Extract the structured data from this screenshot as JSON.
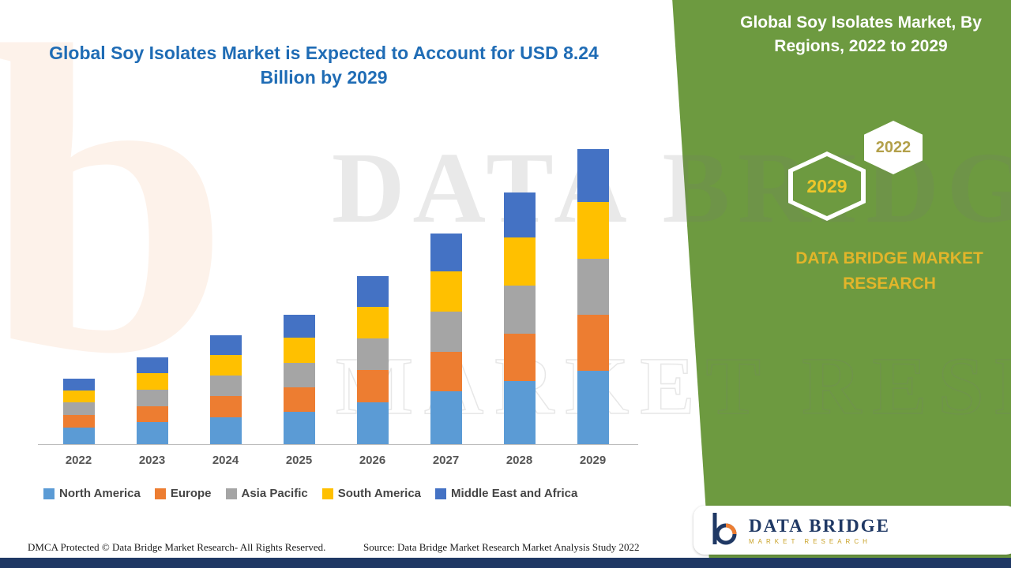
{
  "header": {
    "left_title": "Global Soy Isolates Market is Expected to Account for USD 8.24 Billion by 2029",
    "right_title": "Global Soy Isolates Market, By Regions, 2022 to 2029"
  },
  "badges": {
    "hex_2029": "2029",
    "hex_2022": "2022"
  },
  "brand": {
    "panel_text": "DATA BRIDGE MARKET RESEARCH",
    "logo_name": "DATA BRIDGE",
    "logo_sub": "MARKET RESEARCH"
  },
  "watermark": {
    "line1": "DATA BRIDGE",
    "line2": "MARKET RESEARCH",
    "logo_glyph": "b"
  },
  "footer": {
    "dmca": "DMCA Protected © Data Bridge Market Research- All Rights Reserved.",
    "source": "Source: Data Bridge Market Research Market Analysis Study 2022"
  },
  "colors": {
    "panel_green": "#6d9a40",
    "title_blue": "#1f6cb5",
    "gold": "#e2b52a",
    "navy": "#1f3864"
  },
  "chart_data": {
    "type": "bar",
    "stacked": true,
    "title": "Global Soy Isolates Market, By Regions, 2022 to 2029",
    "unit": "USD Billion",
    "categories": [
      "2022",
      "2023",
      "2024",
      "2025",
      "2026",
      "2027",
      "2028",
      "2029"
    ],
    "series": [
      {
        "name": "North America",
        "color": "#5b9bd5",
        "values": [
          0.46,
          0.61,
          0.76,
          0.9,
          1.18,
          1.47,
          1.76,
          2.06
        ]
      },
      {
        "name": "Europe",
        "color": "#ed7d31",
        "values": [
          0.35,
          0.46,
          0.58,
          0.69,
          0.89,
          1.12,
          1.34,
          1.57
        ]
      },
      {
        "name": "Asia Pacific",
        "color": "#a5a5a5",
        "values": [
          0.35,
          0.46,
          0.58,
          0.69,
          0.89,
          1.12,
          1.34,
          1.57
        ]
      },
      {
        "name": "South America",
        "color": "#ffc000",
        "values": [
          0.35,
          0.46,
          0.58,
          0.69,
          0.89,
          1.12,
          1.34,
          1.57
        ]
      },
      {
        "name": "Middle East and Africa",
        "color": "#4472c4",
        "values": [
          0.33,
          0.44,
          0.55,
          0.65,
          0.85,
          1.06,
          1.27,
          1.48
        ]
      }
    ],
    "totals": [
      1.84,
      2.44,
      3.03,
      3.61,
      4.71,
      5.88,
      7.04,
      8.24
    ],
    "highlight_total_2029": "USD 8.24 Billion",
    "ylim": [
      0,
      8.5
    ],
    "grid": false,
    "legend_position": "bottom",
    "xlabel": "",
    "ylabel": ""
  }
}
